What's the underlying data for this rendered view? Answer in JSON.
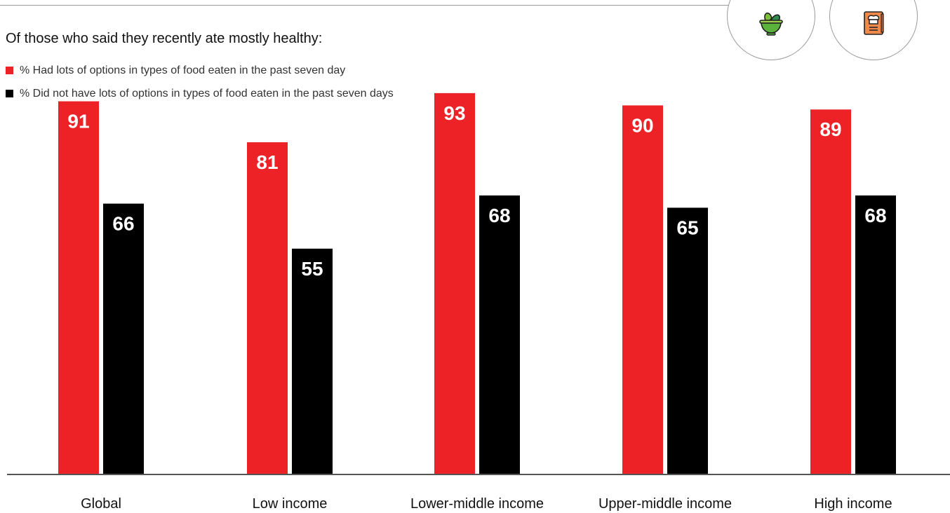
{
  "colors": {
    "series_a": "#ed2227",
    "series_b": "#000000",
    "axis": "#555555"
  },
  "icons": [
    "salad-bowl-icon",
    "recipe-book-icon"
  ],
  "chart_data": {
    "type": "bar",
    "subtitle": "Of those who said they recently ate mostly healthy:",
    "legend": [
      "% Had lots of options in types of food eaten in the past seven day",
      "% Did not have lots of options in types of food eaten in the past seven days"
    ],
    "legend_position": "top-left",
    "categories": [
      "Global",
      "Low income",
      "Lower-middle income",
      "Upper-middle income",
      "High income"
    ],
    "series": [
      {
        "name": "% Had lots of options in types of food eaten in the past seven day",
        "values": [
          91,
          81,
          93,
          90,
          89
        ]
      },
      {
        "name": "% Did not have lots of options in types of food eaten in the past seven days",
        "values": [
          66,
          55,
          68,
          65,
          68
        ]
      }
    ],
    "ylim": [
      0,
      100
    ],
    "grid": false
  }
}
